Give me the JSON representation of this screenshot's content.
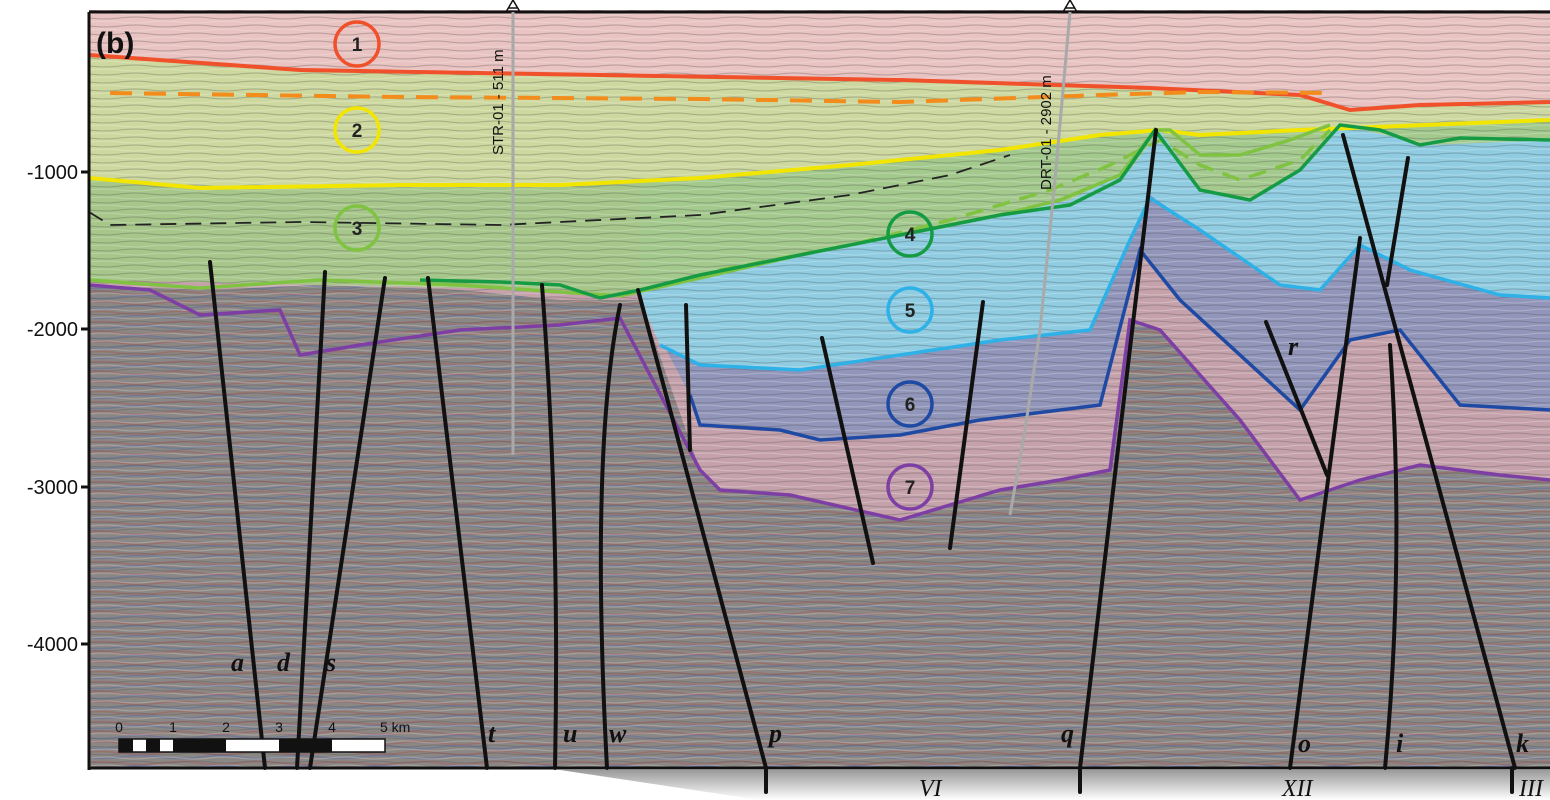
{
  "panel_label": "(b)",
  "y_axis": {
    "ticks": [
      "-1000",
      "-2000",
      "-3000",
      "-4000"
    ]
  },
  "units": [
    {
      "number": "1",
      "color": "#f0502a"
    },
    {
      "number": "2",
      "color": "#f2e600"
    },
    {
      "number": "3",
      "color": "#80c342"
    },
    {
      "number": "4",
      "color": "#169b45"
    },
    {
      "number": "5",
      "color": "#2db1e6"
    },
    {
      "number": "6",
      "color": "#1f4aa3"
    },
    {
      "number": "7",
      "color": "#7e3fa5"
    }
  ],
  "wells": [
    {
      "name": "STR-01 - 511 m"
    },
    {
      "name": "DRT-01 - 2902 m"
    }
  ],
  "faults": [
    "a",
    "d",
    "s",
    "t",
    "u",
    "w",
    "p",
    "q",
    "o",
    "i",
    "k",
    "r"
  ],
  "cross_lines": [
    "VI",
    "XII",
    "III"
  ],
  "scale_bar": {
    "ticks": [
      "0",
      "1",
      "2",
      "3",
      "4",
      "5 km"
    ]
  }
}
